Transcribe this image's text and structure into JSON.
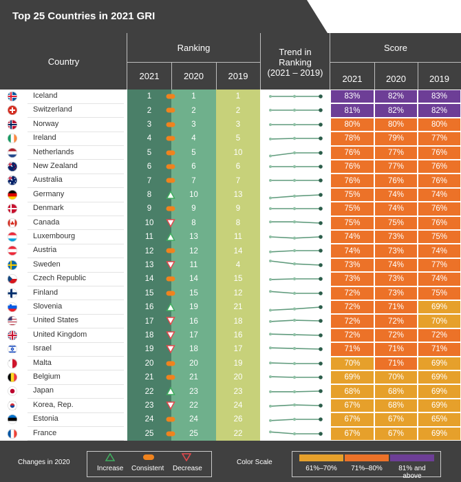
{
  "title": "Top 25 Countries in 2021 GRI",
  "headers": {
    "country": "Country",
    "ranking": "Ranking",
    "trend": [
      "Trend in",
      "Ranking",
      "(2021 – 2019)"
    ],
    "score": "Score",
    "years": [
      "2021",
      "2020",
      "2019"
    ]
  },
  "legend": {
    "changes_label": "Changes in 2020",
    "increase": "Increase",
    "consistent": "Consistent",
    "decrease": "Decrease",
    "scale_label": "Color Scale",
    "scale": [
      "61%–70%",
      "71%–80%",
      "81% and above"
    ]
  },
  "colors": {
    "dark": "#404040",
    "rank2021": "#4a7f68",
    "rank2020": "#6fb08c",
    "rank2019": "#c7d17a",
    "score_low": "#e6a02b",
    "score_mid": "#ec7228",
    "score_high": "#6d3e96",
    "increase": "#3fae5f",
    "consistent": "#f0831e",
    "decrease": "#e2484c",
    "trend_line": "#5f9a7c",
    "trend_dot": "#2b5d4a"
  },
  "chart_data": {
    "type": "table",
    "title": "Top 25 Countries in 2021 GRI",
    "columns": [
      "Country",
      "Ranking 2021",
      "Ranking 2020",
      "Ranking 2019",
      "Score 2021",
      "Score 2020",
      "Score 2019"
    ],
    "rows": [
      {
        "country": "Iceland",
        "flag": "iceland",
        "rank": [
          1,
          1,
          1
        ],
        "change": "consistent",
        "score": [
          "83%",
          "82%",
          "83%"
        ]
      },
      {
        "country": "Switzerland",
        "flag": "switzerland",
        "rank": [
          2,
          2,
          2
        ],
        "change": "consistent",
        "score": [
          "81%",
          "82%",
          "82%"
        ]
      },
      {
        "country": "Norway",
        "flag": "norway",
        "rank": [
          3,
          3,
          3
        ],
        "change": "consistent",
        "score": [
          "80%",
          "80%",
          "80%"
        ]
      },
      {
        "country": "Ireland",
        "flag": "ireland",
        "rank": [
          4,
          4,
          5
        ],
        "change": "consistent",
        "score": [
          "78%",
          "79%",
          "77%"
        ]
      },
      {
        "country": "Netherlands",
        "flag": "netherlands",
        "rank": [
          5,
          5,
          10
        ],
        "change": "consistent",
        "score": [
          "76%",
          "77%",
          "76%"
        ]
      },
      {
        "country": "New Zealand",
        "flag": "newzealand",
        "rank": [
          6,
          6,
          6
        ],
        "change": "consistent",
        "score": [
          "76%",
          "77%",
          "76%"
        ]
      },
      {
        "country": "Australia",
        "flag": "australia",
        "rank": [
          7,
          7,
          7
        ],
        "change": "consistent",
        "score": [
          "76%",
          "76%",
          "76%"
        ]
      },
      {
        "country": "Germany",
        "flag": "germany",
        "rank": [
          8,
          10,
          13
        ],
        "change": "increase",
        "score": [
          "75%",
          "74%",
          "74%"
        ]
      },
      {
        "country": "Denmark",
        "flag": "denmark",
        "rank": [
          9,
          9,
          9
        ],
        "change": "consistent",
        "score": [
          "75%",
          "74%",
          "76%"
        ]
      },
      {
        "country": "Canada",
        "flag": "canada",
        "rank": [
          10,
          8,
          8
        ],
        "change": "decrease",
        "score": [
          "75%",
          "75%",
          "76%"
        ]
      },
      {
        "country": "Luxembourg",
        "flag": "luxembourg",
        "rank": [
          11,
          13,
          11
        ],
        "change": "increase",
        "score": [
          "74%",
          "73%",
          "75%"
        ]
      },
      {
        "country": "Austria",
        "flag": "austria",
        "rank": [
          12,
          12,
          14
        ],
        "change": "consistent",
        "score": [
          "74%",
          "73%",
          "74%"
        ]
      },
      {
        "country": "Sweden",
        "flag": "sweden",
        "rank": [
          13,
          11,
          4
        ],
        "change": "decrease",
        "score": [
          "73%",
          "74%",
          "77%"
        ]
      },
      {
        "country": "Czech Republic",
        "flag": "czech",
        "rank": [
          14,
          14,
          15
        ],
        "change": "consistent",
        "score": [
          "73%",
          "73%",
          "74%"
        ]
      },
      {
        "country": "Finland",
        "flag": "finland",
        "rank": [
          15,
          15,
          12
        ],
        "change": "consistent",
        "score": [
          "72%",
          "73%",
          "75%"
        ]
      },
      {
        "country": "Slovenia",
        "flag": "slovenia",
        "rank": [
          16,
          19,
          21
        ],
        "change": "increase",
        "score": [
          "72%",
          "71%",
          "69%"
        ]
      },
      {
        "country": "United States",
        "flag": "usa",
        "rank": [
          17,
          16,
          18
        ],
        "change": "decrease",
        "score": [
          "72%",
          "72%",
          "70%"
        ]
      },
      {
        "country": "United Kingdom",
        "flag": "uk",
        "rank": [
          18,
          17,
          16
        ],
        "change": "decrease",
        "score": [
          "72%",
          "72%",
          "72%"
        ]
      },
      {
        "country": "Israel",
        "flag": "israel",
        "rank": [
          19,
          18,
          17
        ],
        "change": "decrease",
        "score": [
          "71%",
          "71%",
          "71%"
        ]
      },
      {
        "country": "Malta",
        "flag": "malta",
        "rank": [
          20,
          20,
          19
        ],
        "change": "consistent",
        "score": [
          "70%",
          "71%",
          "69%"
        ]
      },
      {
        "country": "Belgium",
        "flag": "belgium",
        "rank": [
          21,
          21,
          20
        ],
        "change": "consistent",
        "score": [
          "69%",
          "70%",
          "69%"
        ]
      },
      {
        "country": "Japan",
        "flag": "japan",
        "rank": [
          22,
          23,
          23
        ],
        "change": "increase",
        "score": [
          "68%",
          "68%",
          "69%"
        ]
      },
      {
        "country": "Korea, Rep.",
        "flag": "korea",
        "rank": [
          23,
          22,
          24
        ],
        "change": "decrease",
        "score": [
          "67%",
          "68%",
          "69%"
        ]
      },
      {
        "country": "Estonia",
        "flag": "estonia",
        "rank": [
          24,
          24,
          26
        ],
        "change": "consistent",
        "score": [
          "67%",
          "67%",
          "65%"
        ]
      },
      {
        "country": "France",
        "flag": "france",
        "rank": [
          25,
          25,
          22
        ],
        "change": "consistent",
        "score": [
          "67%",
          "67%",
          "69%"
        ]
      }
    ]
  }
}
